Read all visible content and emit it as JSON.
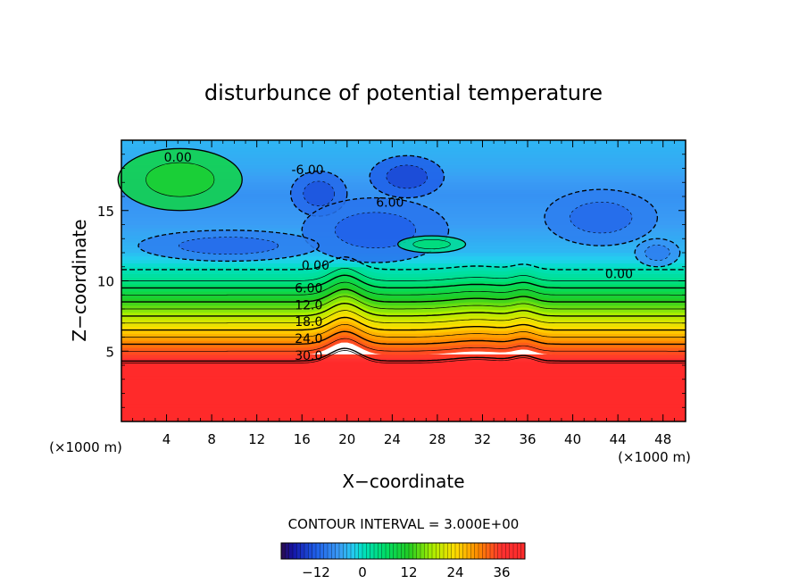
{
  "chart_data": {
    "type": "heatmap",
    "title": "disturbunce of potential temperature",
    "xlabel": "X−coordinate",
    "ylabel": "Z−coordinate",
    "x_unit": "(×1000 m)",
    "y_unit": "(×1000 m)",
    "xlim": [
      0,
      50
    ],
    "ylim": [
      0,
      20
    ],
    "x_ticks": [
      4,
      8,
      12,
      16,
      20,
      24,
      28,
      32,
      36,
      40,
      44,
      48
    ],
    "y_ticks": [
      5,
      10,
      15
    ],
    "contour_interval_text": "CONTOUR INTERVAL = 3.000E+00",
    "contour_interval": 3.0,
    "color_range": [
      -21,
      42
    ],
    "colorbar_ticks": [
      "−12",
      "0",
      "12",
      "24",
      "36"
    ],
    "colorbar_tick_values": [
      -12,
      0,
      12,
      24,
      36
    ],
    "vertical_profile": [
      {
        "z": 0,
        "value": 42
      },
      {
        "z": 4.0,
        "value": 42
      },
      {
        "z": 4.3,
        "value": 36
      },
      {
        "z": 5.0,
        "value": 33
      },
      {
        "z": 6.0,
        "value": 27
      },
      {
        "z": 7.0,
        "value": 21
      },
      {
        "z": 8.0,
        "value": 15
      },
      {
        "z": 9.0,
        "value": 9
      },
      {
        "z": 10.0,
        "value": 3
      },
      {
        "z": 10.8,
        "value": 0
      },
      {
        "z": 12.0,
        "value": -4
      },
      {
        "z": 14.0,
        "value": -6
      },
      {
        "z": 16.0,
        "value": -7
      },
      {
        "z": 18.0,
        "value": -5
      },
      {
        "z": 20.0,
        "value": -4
      }
    ],
    "contour_labels": [
      {
        "text": "0.00",
        "x": 5,
        "z": 18.8
      },
      {
        "text": "-6.00",
        "x": 16.5,
        "z": 17.9
      },
      {
        "text": "6.00",
        "x": 23.8,
        "z": 15.6
      },
      {
        "text": "0.00",
        "x": 17.2,
        "z": 11.1
      },
      {
        "text": "0.00",
        "x": 44.1,
        "z": 10.5
      },
      {
        "text": "6.00",
        "x": 16.6,
        "z": 9.5
      },
      {
        "text": "12.0",
        "x": 16.6,
        "z": 8.3
      },
      {
        "text": "18.0",
        "x": 16.6,
        "z": 7.1
      },
      {
        "text": "24.0",
        "x": 16.6,
        "z": 5.9
      },
      {
        "text": "30.0",
        "x": 16.6,
        "z": 4.7
      }
    ],
    "anomalies": [
      {
        "x": 5.2,
        "z": 17.2,
        "rx": 5.5,
        "rz": 2.2,
        "value": 9
      },
      {
        "x": 25.3,
        "z": 17.4,
        "rx": 3.3,
        "rz": 1.5,
        "value": -12
      },
      {
        "x": 17.5,
        "z": 16.2,
        "rx": 2.5,
        "rz": 1.6,
        "value": -11
      },
      {
        "x": 22.5,
        "z": 13.6,
        "rx": 6.5,
        "rz": 2.3,
        "value": -10
      },
      {
        "x": 42.5,
        "z": 14.5,
        "rx": 5.0,
        "rz": 2.0,
        "value": -9
      },
      {
        "x": 9.5,
        "z": 12.5,
        "rx": 8.0,
        "rz": 1.1,
        "value": -9
      },
      {
        "x": 27.5,
        "z": 12.6,
        "rx": 3.0,
        "rz": 0.6,
        "value": 3
      },
      {
        "x": 47.5,
        "z": 12.0,
        "rx": 2.0,
        "rz": 1.0,
        "value": -7
      }
    ],
    "ridges": [
      {
        "x": 19.8,
        "width": 1.8,
        "amplitude": 0.9
      },
      {
        "x": 31.5,
        "width": 3.0,
        "amplitude": 0.25
      },
      {
        "x": 35.7,
        "width": 1.3,
        "amplitude": 0.35
      }
    ]
  }
}
